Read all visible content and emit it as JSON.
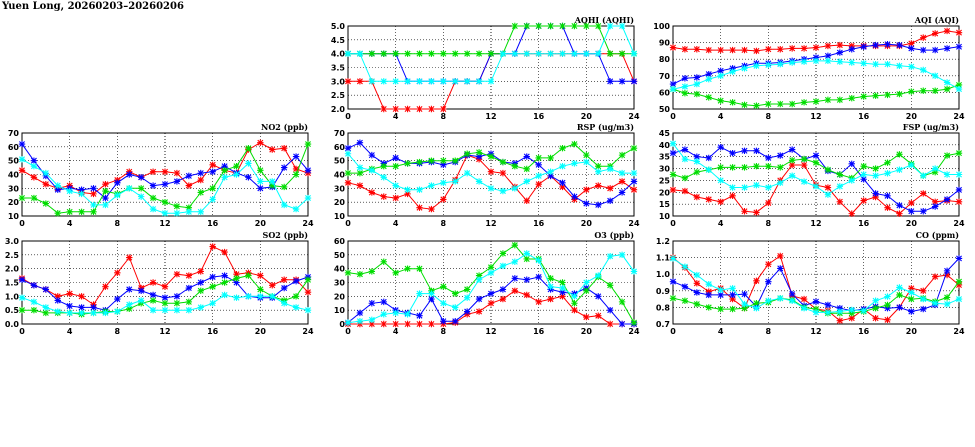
{
  "page": {
    "title": "Yuen Long, 20260203–20260206"
  },
  "chart_data": [
    {
      "id": "aqhi",
      "type": "line",
      "title": "AQHI (AQHI)",
      "ylim": [
        2.0,
        5.0
      ],
      "yticks": [
        "2.0",
        "2.5",
        "3.0",
        "3.5",
        "4.0",
        "4.5",
        "5.0"
      ],
      "xlim": [
        0,
        24
      ],
      "xticks": [
        "0",
        "4",
        "8",
        "12",
        "16",
        "20",
        "24"
      ],
      "grid": true,
      "series": [
        {
          "color": "#ff0000",
          "values": [
            3,
            3,
            3,
            2,
            2,
            2,
            2,
            2,
            2,
            3,
            3,
            3,
            4,
            4,
            4,
            4,
            4,
            4,
            4,
            4,
            4,
            4,
            4,
            4,
            3
          ]
        },
        {
          "color": "#0000ff",
          "values": [
            4,
            4,
            4,
            4,
            4,
            3,
            3,
            3,
            3,
            3,
            3,
            3,
            4,
            4,
            4,
            5,
            5,
            5,
            5,
            4,
            4,
            4,
            3,
            3,
            3
          ]
        },
        {
          "color": "#00dd00",
          "values": [
            4,
            4,
            4,
            4,
            4,
            4,
            4,
            4,
            4,
            4,
            4,
            4,
            4,
            4,
            5,
            5,
            5,
            5,
            5,
            5,
            5,
            5,
            4,
            4,
            4
          ]
        },
        {
          "color": "#00ffff",
          "values": [
            4,
            4,
            3,
            3,
            3,
            3,
            3,
            3,
            3,
            3,
            3,
            3,
            3,
            4,
            4,
            4,
            4,
            4,
            4,
            4,
            4,
            4,
            5,
            5,
            4
          ]
        }
      ]
    },
    {
      "id": "aqi",
      "type": "line",
      "title": "AQI (AQI)",
      "ylim": [
        50,
        100
      ],
      "yticks": [
        "50",
        "60",
        "70",
        "80",
        "90",
        "100"
      ],
      "xlim": [
        0,
        24
      ],
      "xticks": [
        "0",
        "4",
        "8",
        "12",
        "16",
        "20",
        "24"
      ],
      "grid": true,
      "series": [
        {
          "color": "#ff0000",
          "values": [
            87,
            86,
            86,
            85.5,
            85.5,
            85.5,
            85.5,
            85,
            86,
            86,
            86.5,
            86.5,
            87,
            88,
            88.5,
            88,
            88,
            88,
            88,
            88,
            89.5,
            93,
            95.5,
            97,
            96
          ]
        },
        {
          "color": "#0000ff",
          "values": [
            65,
            68.5,
            69,
            71,
            73,
            74.5,
            76,
            77.5,
            77.5,
            78,
            79,
            80,
            81,
            82,
            84,
            86,
            87.5,
            88.5,
            89,
            88.5,
            86.5,
            85.5,
            85.5,
            86.5,
            87.5
          ]
        },
        {
          "color": "#00dd00",
          "values": [
            62,
            59.5,
            59,
            57,
            55,
            54,
            52.5,
            52,
            53,
            53,
            53,
            54,
            54.5,
            55.5,
            55.5,
            56.5,
            57.5,
            58,
            58.5,
            59,
            60.5,
            61,
            61,
            62,
            64.5
          ]
        },
        {
          "color": "#00ffff",
          "values": [
            62,
            63.5,
            65,
            68,
            70,
            72.5,
            74.5,
            76,
            76.5,
            77,
            78,
            78.5,
            79,
            79,
            78.5,
            78,
            77.5,
            77,
            77,
            76,
            75.5,
            73.5,
            70,
            66,
            62
          ]
        }
      ]
    },
    {
      "id": "no2",
      "type": "line",
      "title": "NO2 (ppb)",
      "ylim": [
        10,
        70
      ],
      "yticks": [
        "10",
        "20",
        "30",
        "40",
        "50",
        "60",
        "70"
      ],
      "xlim": [
        0,
        24
      ],
      "xticks": [
        "0",
        "4",
        "8",
        "12",
        "16",
        "20",
        "24"
      ],
      "grid": true,
      "series": [
        {
          "color": "#ff0000",
          "values": [
            43,
            38,
            33,
            30,
            32,
            27,
            26,
            33,
            36,
            42,
            38,
            42,
            42,
            41,
            32,
            36,
            47,
            43,
            41,
            58,
            63,
            58,
            59,
            44,
            41
          ]
        },
        {
          "color": "#0000ff",
          "values": [
            62,
            50,
            39,
            29,
            30,
            29,
            30,
            23,
            34,
            40,
            38,
            32,
            33,
            35,
            39,
            41,
            42,
            46,
            41,
            38,
            30,
            31,
            45,
            53,
            43
          ]
        },
        {
          "color": "#00dd00",
          "values": [
            23,
            23,
            19,
            12,
            13,
            13,
            13,
            28,
            26,
            30,
            30,
            23,
            20,
            17,
            16,
            27,
            30,
            43,
            46,
            59,
            43,
            32,
            31,
            40,
            62
          ]
        },
        {
          "color": "#00ffff",
          "values": [
            51,
            46,
            41,
            32,
            28,
            26,
            18,
            18,
            25,
            30,
            24,
            15,
            12,
            12,
            13,
            13,
            22,
            38,
            40,
            48,
            35,
            35,
            18,
            15,
            23
          ]
        }
      ]
    },
    {
      "id": "rsp",
      "type": "line",
      "title": "RSP (ug/m3)",
      "ylim": [
        10,
        70
      ],
      "yticks": [
        "10",
        "20",
        "30",
        "40",
        "50",
        "60",
        "70"
      ],
      "xlim": [
        0,
        24
      ],
      "xticks": [
        "0",
        "4",
        "8",
        "12",
        "16",
        "20",
        "24"
      ],
      "grid": true,
      "series": [
        {
          "color": "#ff0000",
          "values": [
            34,
            32,
            27,
            24,
            23,
            26,
            16,
            15,
            22,
            36,
            54,
            51,
            42,
            41,
            31,
            21,
            33,
            39,
            31,
            22,
            29,
            32,
            30,
            35,
            29
          ]
        },
        {
          "color": "#0000ff",
          "values": [
            59,
            63,
            54,
            48,
            52,
            48,
            48,
            49,
            47,
            49,
            54,
            53,
            55,
            49,
            48,
            53,
            47,
            39,
            34,
            24,
            19,
            18,
            21,
            27,
            35
          ]
        },
        {
          "color": "#00dd00",
          "values": [
            41,
            41,
            44,
            46,
            46,
            48,
            49,
            50,
            50,
            50,
            55,
            56,
            53,
            49,
            46,
            44,
            52,
            52,
            59,
            62,
            54,
            46,
            46,
            54,
            59
          ]
        },
        {
          "color": "#00ffff",
          "values": [
            55,
            45,
            43,
            38,
            32,
            29,
            29,
            32,
            34,
            35,
            41,
            35,
            30,
            28,
            30,
            35,
            39,
            42,
            46,
            48,
            49,
            42,
            44,
            41,
            41
          ]
        }
      ]
    },
    {
      "id": "fsp",
      "type": "line",
      "title": "FSP (ug/m3)",
      "ylim": [
        10,
        45
      ],
      "yticks": [
        "10",
        "15",
        "20",
        "25",
        "30",
        "35",
        "40",
        "45"
      ],
      "xlim": [
        0,
        24
      ],
      "xticks": [
        "0",
        "4",
        "8",
        "12",
        "16",
        "20",
        "24"
      ],
      "grid": true,
      "series": [
        {
          "color": "#ff0000",
          "values": [
            21,
            20.5,
            18,
            17,
            16,
            18.5,
            12,
            11.5,
            15.5,
            25,
            31.5,
            31.5,
            23,
            22,
            16,
            11,
            16.5,
            18,
            13.5,
            11,
            15.5,
            19.5,
            16,
            16.5,
            16
          ]
        },
        {
          "color": "#0000ff",
          "values": [
            36.5,
            38,
            35,
            34.5,
            39,
            36.5,
            37.5,
            37.5,
            34.5,
            35.5,
            38,
            34,
            35.5,
            29,
            27.5,
            32,
            25.5,
            19.5,
            18.5,
            14.5,
            12,
            12,
            14,
            17,
            21
          ]
        },
        {
          "color": "#00dd00",
          "values": [
            27.5,
            26,
            28.5,
            29.5,
            30.5,
            30.5,
            30.5,
            31,
            31,
            30.5,
            33.5,
            34,
            32.5,
            29.5,
            27.5,
            26,
            31,
            30,
            32.5,
            36,
            32,
            27,
            28.5,
            35.5,
            36.5
          ]
        },
        {
          "color": "#00ffff",
          "values": [
            40.5,
            34,
            33,
            29.5,
            25,
            22,
            22,
            23,
            22,
            24,
            27,
            24.5,
            22.5,
            19,
            22.5,
            25,
            27.5,
            27,
            28,
            29.5,
            31.5,
            27,
            30,
            27.5,
            27.5
          ]
        }
      ]
    },
    {
      "id": "so2",
      "type": "line",
      "title": "SO2 (ppb)",
      "ylim": [
        0,
        3.0
      ],
      "yticks": [
        "0.0",
        "0.5",
        "1.0",
        "1.5",
        "2.0",
        "2.5",
        "3.0"
      ],
      "xlim": [
        0,
        24
      ],
      "xticks": [
        "0",
        "4",
        "8",
        "12",
        "16",
        "20",
        "24"
      ],
      "grid": true,
      "series": [
        {
          "color": "#ff0000",
          "values": [
            1.65,
            1.4,
            1.25,
            1.0,
            1.1,
            1.0,
            0.7,
            1.35,
            1.85,
            2.4,
            1.3,
            1.5,
            1.35,
            1.8,
            1.75,
            1.9,
            2.8,
            2.6,
            1.8,
            1.85,
            1.75,
            1.4,
            1.6,
            1.6,
            1.15
          ]
        },
        {
          "color": "#0000ff",
          "values": [
            1.6,
            1.4,
            1.25,
            0.85,
            0.65,
            0.6,
            0.6,
            0.5,
            0.9,
            1.25,
            1.2,
            1.05,
            0.95,
            1.0,
            1.3,
            1.5,
            1.7,
            1.75,
            1.5,
            1.0,
            0.95,
            0.95,
            1.3,
            1.55,
            1.7
          ]
        },
        {
          "color": "#00dd00",
          "values": [
            0.5,
            0.5,
            0.4,
            0.4,
            0.4,
            0.35,
            0.4,
            0.45,
            0.45,
            0.55,
            0.75,
            0.85,
            0.75,
            0.75,
            0.8,
            1.2,
            1.35,
            1.5,
            1.65,
            1.75,
            1.25,
            1.0,
            0.85,
            1.0,
            1.6
          ]
        },
        {
          "color": "#00ffff",
          "values": [
            0.95,
            0.8,
            0.6,
            0.45,
            0.4,
            0.4,
            0.4,
            0.4,
            0.45,
            0.7,
            0.85,
            0.5,
            0.5,
            0.5,
            0.5,
            0.6,
            0.75,
            1.05,
            0.95,
            1.0,
            1.0,
            1.0,
            0.75,
            0.6,
            0.5
          ]
        }
      ]
    },
    {
      "id": "o3",
      "type": "line",
      "title": "O3 (ppb)",
      "ylim": [
        0,
        60
      ],
      "yticks": [
        "0",
        "10",
        "20",
        "30",
        "40",
        "50",
        "60"
      ],
      "xlim": [
        0,
        24
      ],
      "xticks": [
        "0",
        "4",
        "8",
        "12",
        "16",
        "20",
        "24"
      ],
      "grid": true,
      "series": [
        {
          "color": "#ff0000",
          "values": [
            0,
            0,
            0,
            0,
            0,
            0,
            0,
            0,
            0,
            1,
            7,
            9,
            15,
            18,
            24,
            21,
            16,
            18,
            20,
            10,
            5,
            6,
            0,
            0,
            0
          ]
        },
        {
          "color": "#0000ff",
          "values": [
            1,
            8,
            15,
            16,
            10,
            8,
            6,
            18,
            2,
            2,
            9,
            18,
            22,
            25,
            33,
            32,
            34,
            25,
            23,
            22,
            26,
            20,
            10,
            0,
            0
          ]
        },
        {
          "color": "#00dd00",
          "values": [
            37,
            36,
            38,
            45,
            37,
            40,
            40,
            24,
            27,
            22,
            25,
            35,
            41,
            51,
            57,
            47,
            47,
            33,
            30,
            15,
            24,
            34,
            28,
            16,
            1
          ]
        },
        {
          "color": "#00ffff",
          "values": [
            1,
            2,
            3,
            7,
            8,
            7,
            22,
            22,
            15,
            12,
            19,
            32,
            37,
            42,
            45,
            51,
            46,
            27,
            26,
            20,
            30,
            35,
            49,
            50,
            38
          ]
        }
      ]
    },
    {
      "id": "co",
      "type": "line",
      "title": "CO (ppm)",
      "ylim": [
        0.7,
        1.2
      ],
      "yticks": [
        "0.7",
        "0.8",
        "0.9",
        "1.0",
        "1.1",
        "1.2"
      ],
      "xlim": [
        0,
        24
      ],
      "xticks": [
        "0",
        "4",
        "8",
        "12",
        "16",
        "20",
        "24"
      ],
      "grid": true,
      "series": [
        {
          "color": "#ff0000",
          "values": [
            1.1,
            1.04,
            0.945,
            0.895,
            0.915,
            0.85,
            0.795,
            0.96,
            1.06,
            1.11,
            0.87,
            0.85,
            0.79,
            0.78,
            0.72,
            0.735,
            0.79,
            0.735,
            0.725,
            0.8,
            0.915,
            0.9,
            0.985,
            0.995,
            0.935
          ]
        },
        {
          "color": "#0000ff",
          "values": [
            0.955,
            0.925,
            0.89,
            0.875,
            0.875,
            0.875,
            0.88,
            0.805,
            0.955,
            1.035,
            0.88,
            0.81,
            0.835,
            0.815,
            0.795,
            0.78,
            0.79,
            0.805,
            0.795,
            0.8,
            0.775,
            0.79,
            0.815,
            1.02,
            1.095
          ]
        },
        {
          "color": "#00dd00",
          "values": [
            0.855,
            0.84,
            0.82,
            0.8,
            0.79,
            0.79,
            0.795,
            0.825,
            0.83,
            0.855,
            0.845,
            0.8,
            0.79,
            0.765,
            0.765,
            0.765,
            0.775,
            0.795,
            0.815,
            0.875,
            0.85,
            0.855,
            0.835,
            0.86,
            0.955
          ]
        },
        {
          "color": "#00ffff",
          "values": [
            1.095,
            1.045,
            0.995,
            0.94,
            0.905,
            0.915,
            0.82,
            0.795,
            0.84,
            0.855,
            0.84,
            0.795,
            0.77,
            0.77,
            0.775,
            0.785,
            0.78,
            0.84,
            0.865,
            0.92,
            0.89,
            0.85,
            0.825,
            0.82,
            0.85
          ]
        }
      ]
    }
  ]
}
